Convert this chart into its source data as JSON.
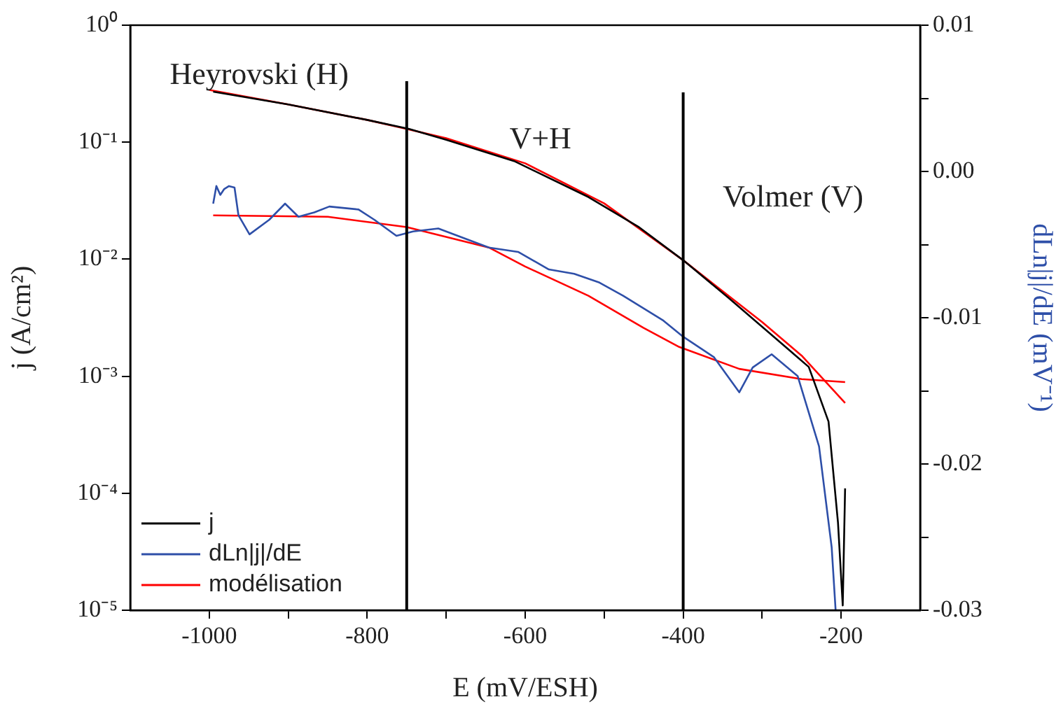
{
  "chart_data": {
    "type": "line",
    "xlabel": "E (mV/ESH)",
    "ylabel": "j (A/cm²)",
    "y2label": "dLn|j|/dE (mV⁻¹)",
    "annotations": [
      "Heyrovski (H)",
      "V+H",
      "Volmer (V)"
    ],
    "xlim": [
      -1100,
      -100
    ],
    "xticks": [
      -1000,
      {
        "value": -900,
        "label": null
      },
      -800,
      {
        "value": -700,
        "label": null
      },
      -600,
      {
        "value": -500,
        "label": null
      },
      -400,
      {
        "value": -300,
        "label": null
      },
      -200
    ],
    "ylim": [
      1e-05,
      1
    ],
    "yticks": [
      {
        "value": 1e-05,
        "label": "10⁻⁵"
      },
      {
        "value": 0.0001,
        "label": "10⁻⁴"
      },
      {
        "value": 0.001,
        "label": "10⁻³"
      },
      {
        "value": 0.01,
        "label": "10⁻²"
      },
      {
        "value": 0.1,
        "label": "10⁻¹"
      },
      {
        "value": 1,
        "label": "10⁰"
      }
    ],
    "y2lim": [
      -0.03,
      0.01
    ],
    "y2ticks": [
      {
        "value": -0.03,
        "label": "-0.03"
      },
      {
        "value": -0.025,
        "label": null
      },
      {
        "value": -0.02,
        "label": "-0.02"
      },
      {
        "value": -0.015,
        "label": null
      },
      {
        "value": -0.01,
        "label": "-0.01"
      },
      {
        "value": -0.005,
        "label": null
      },
      {
        "value": 0,
        "label": "0.00"
      },
      {
        "value": 0.005,
        "label": null
      },
      {
        "value": 0.01,
        "label": "0.01"
      }
    ],
    "log": "y",
    "grid": false,
    "legend": "bottom left",
    "marker": "none",
    "line_style": "solid",
    "ref_lines": [
      {
        "axis": "x",
        "value": -750,
        "color": "#000000"
      },
      {
        "axis": "x",
        "value": -400,
        "color": "#000000"
      }
    ],
    "series": [
      {
        "name": "j",
        "color": "#000000",
        "x": [
          -995,
          -900,
          -800,
          -747,
          -700,
          -614,
          -520,
          -457,
          -400,
          -343,
          -267,
          -241,
          -216,
          -204,
          -198,
          -195
        ],
        "values": [
          0.27,
          0.21,
          0.155,
          0.13,
          0.105,
          0.069,
          0.034,
          0.019,
          0.0098,
          0.0047,
          0.0017,
          0.0012,
          0.00041,
          5.6e-05,
          1.1e-05,
          0.00011
        ]
      },
      {
        "name": "dLn|j|/dE",
        "color": "#2e4fa8",
        "axis": "y2",
        "x": [
          -995,
          -991,
          -986,
          -981,
          -975,
          -968,
          -963,
          -949,
          -924,
          -904,
          -887,
          -867,
          -848,
          -811,
          -791,
          -763,
          -742,
          -710,
          -646,
          -609,
          -570,
          -538,
          -506,
          -476,
          -425,
          -400,
          -361,
          -329,
          -312,
          -288,
          -255,
          -228,
          -212,
          -207
        ],
        "values": [
          -0.0022,
          -0.001,
          -0.0016,
          -0.0012,
          -0.001,
          -0.0011,
          -0.003,
          -0.0043,
          -0.0033,
          -0.0022,
          -0.0031,
          -0.0028,
          -0.0024,
          -0.0026,
          -0.0033,
          -0.0044,
          -0.0041,
          -0.0039,
          -0.0052,
          -0.0055,
          -0.0067,
          -0.007,
          -0.0076,
          -0.0085,
          -0.0102,
          -0.0113,
          -0.0127,
          -0.0151,
          -0.0134,
          -0.0125,
          -0.014,
          -0.0188,
          -0.0257,
          -0.03
        ]
      },
      {
        "name": "modélisation",
        "color": "#ff0000",
        "x": [
          -1000,
          -900,
          -800,
          -750,
          -700,
          -600,
          -500,
          -400,
          -300,
          -250,
          -195
        ],
        "values": [
          0.28,
          0.21,
          0.155,
          0.13,
          0.108,
          0.066,
          0.03,
          0.0098,
          0.0029,
          0.0015,
          0.00059
        ]
      },
      {
        "color": "#ff0000",
        "axis": "y2",
        "x": [
          -995,
          -850,
          -750,
          -646,
          -600,
          -520,
          -450,
          -405,
          -329,
          -250,
          -195
        ],
        "values": [
          -0.003,
          -0.0031,
          -0.0038,
          -0.0052,
          -0.0065,
          -0.0085,
          -0.0107,
          -0.012,
          -0.0135,
          -0.0142,
          -0.0144
        ]
      }
    ]
  }
}
